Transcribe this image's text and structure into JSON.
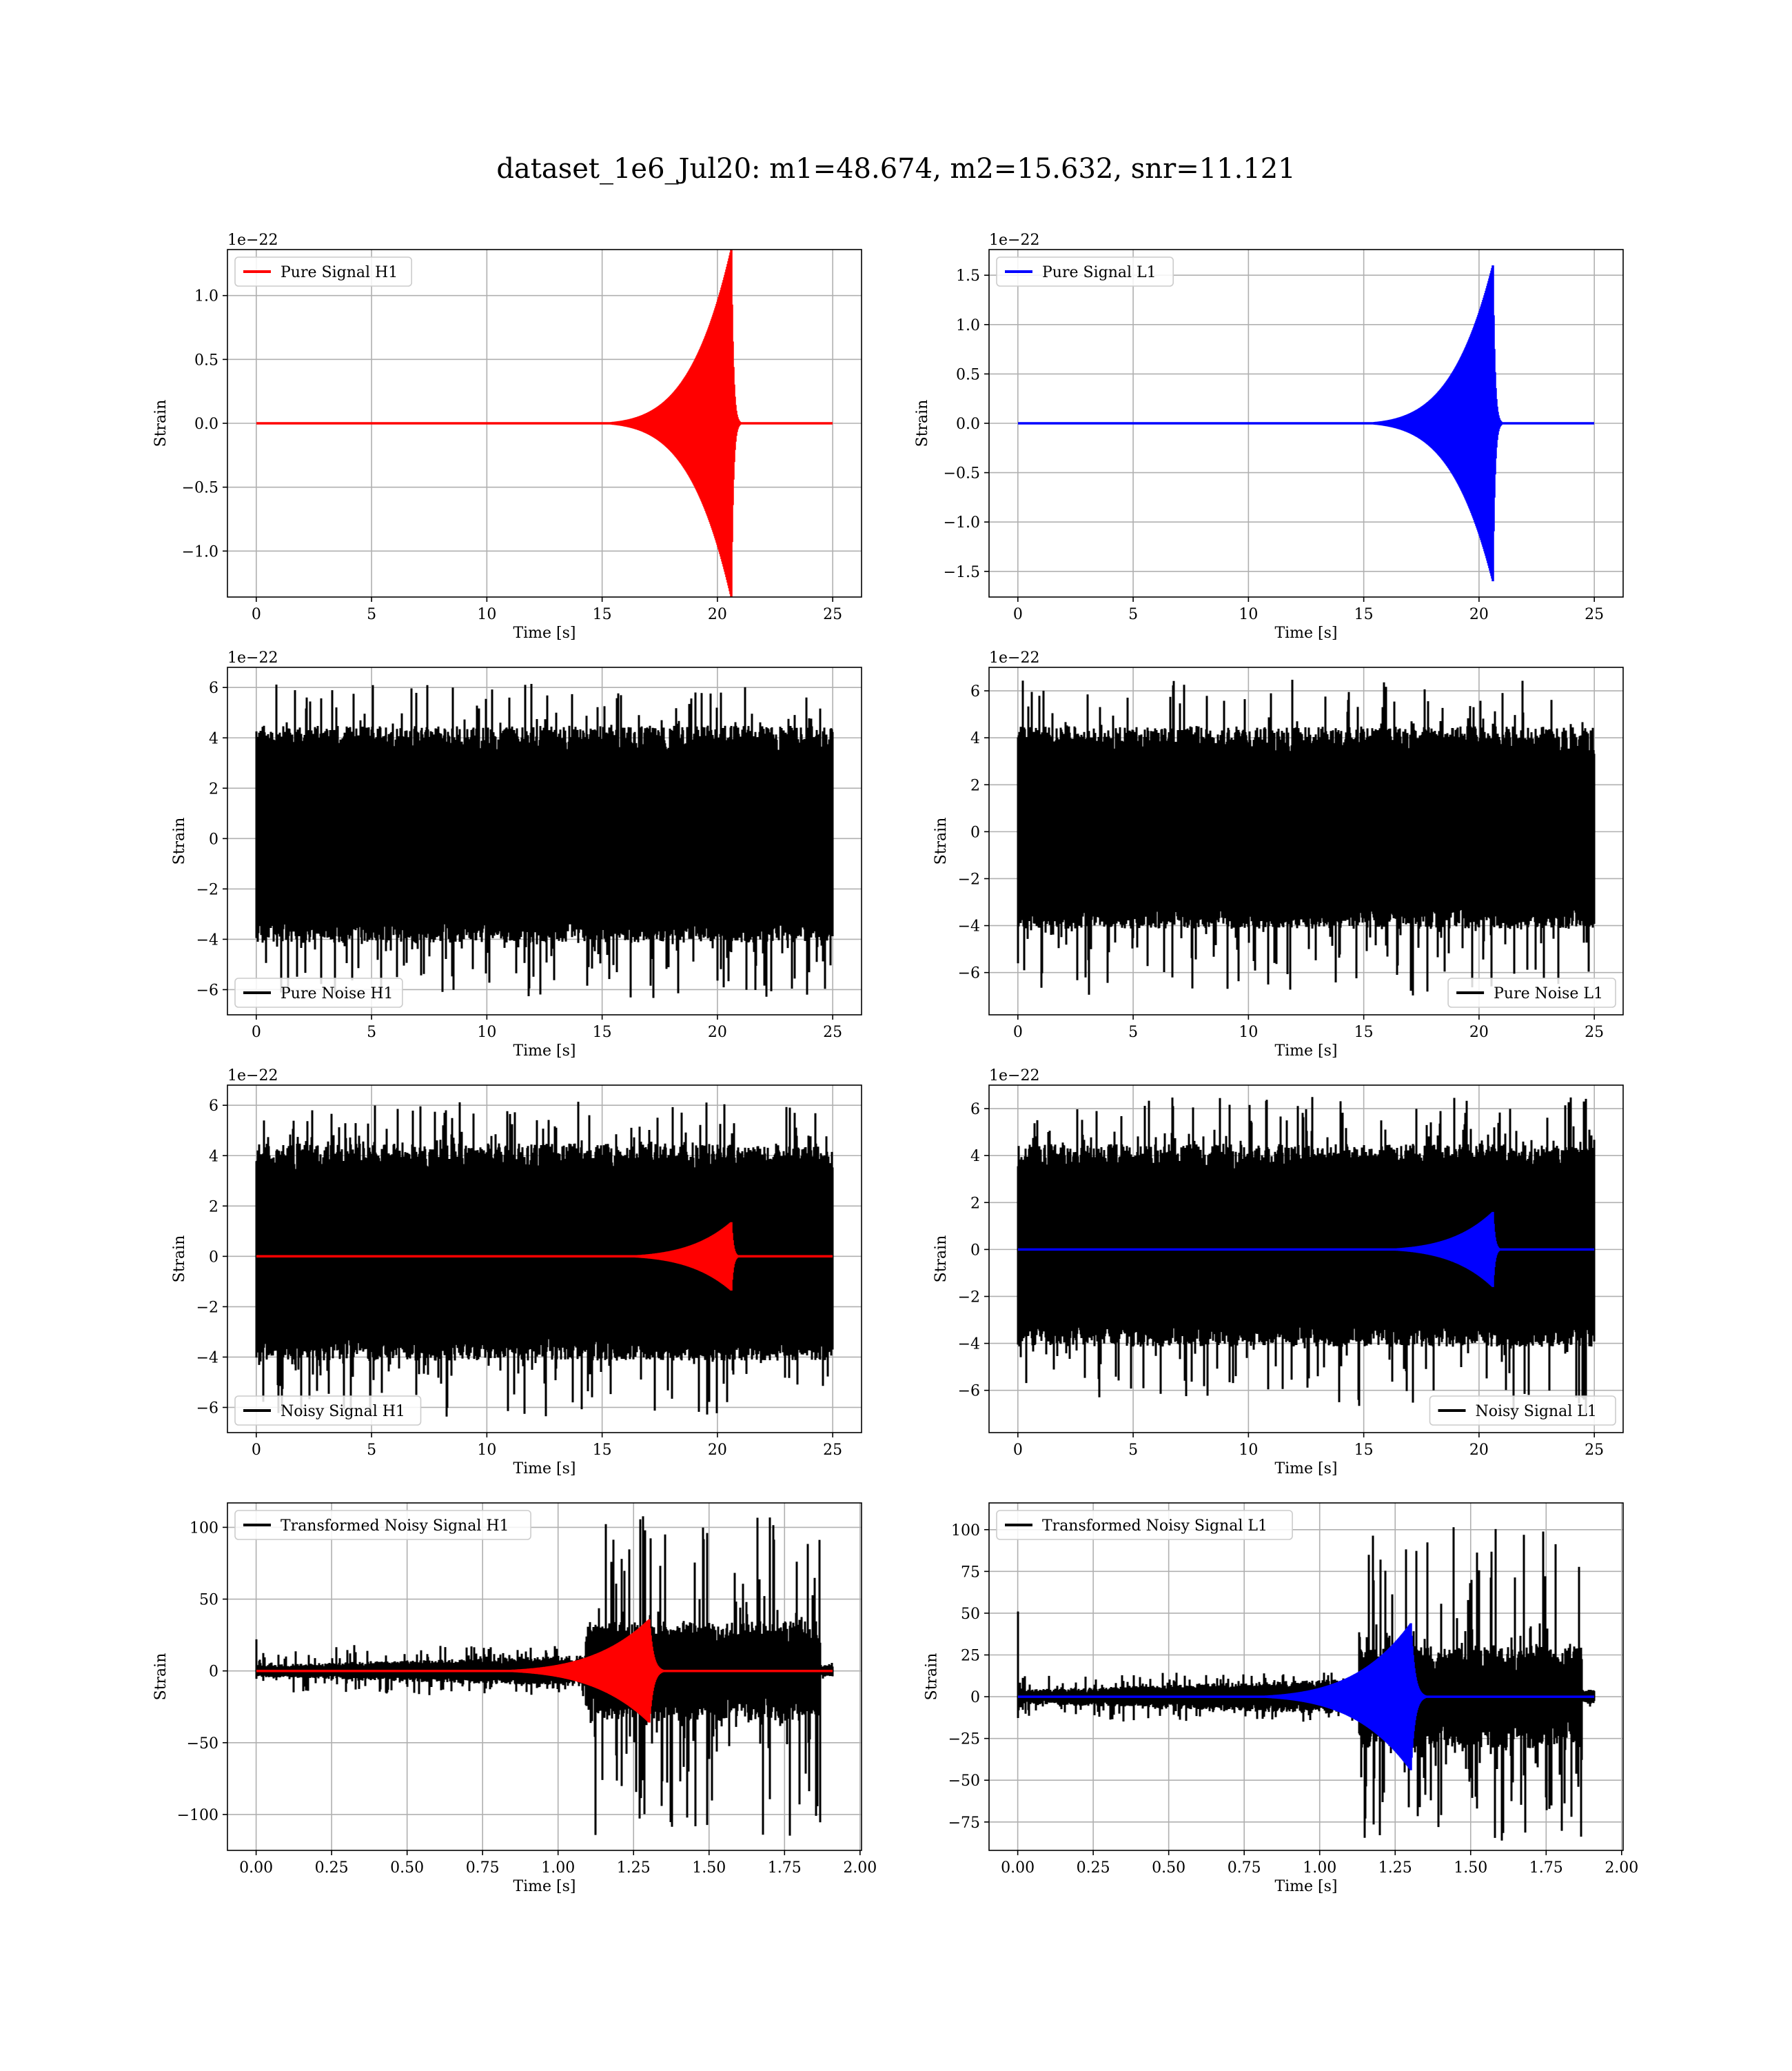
{
  "figure": {
    "title": "dataset_1e6_Jul20: m1=48.674, m2=15.632, snr=11.121"
  },
  "colors": {
    "signal_h1": "#ff0000",
    "signal_l1": "#0000ff",
    "noise": "#000000",
    "grid": "#b0b0b0"
  },
  "chart_data": [
    {
      "id": "pure-signal-h1",
      "type": "line",
      "xlabel": "Time [s]",
      "ylabel": "Strain",
      "offset_text": "1e−22",
      "xlim": [
        -1.25,
        26.25
      ],
      "ylim": [
        -1.36,
        1.36
      ],
      "xticks": [
        0,
        5,
        10,
        15,
        20,
        25
      ],
      "xtick_labels": [
        "0",
        "5",
        "10",
        "15",
        "20",
        "25"
      ],
      "yticks": [
        -1.0,
        -0.5,
        0.0,
        0.5,
        1.0
      ],
      "ytick_labels": [
        "−1.0",
        "−0.5",
        "0.0",
        "0.5",
        "1.0"
      ],
      "legend": {
        "position": "upper left"
      },
      "grid": true,
      "series": [
        {
          "name": "Pure Signal H1",
          "color": "#ff0000",
          "kind": "chirp",
          "t_start": 0,
          "t_end": 25,
          "t_merger": 20.6,
          "peak": 1.36,
          "ringdown_s": 0.08
        }
      ]
    },
    {
      "id": "pure-signal-l1",
      "type": "line",
      "xlabel": "Time [s]",
      "ylabel": "Strain",
      "offset_text": "1e−22",
      "xlim": [
        -1.25,
        26.25
      ],
      "ylim": [
        -1.76,
        1.76
      ],
      "xticks": [
        0,
        5,
        10,
        15,
        20,
        25
      ],
      "xtick_labels": [
        "0",
        "5",
        "10",
        "15",
        "20",
        "25"
      ],
      "yticks": [
        -1.5,
        -1.0,
        -0.5,
        0.0,
        0.5,
        1.0,
        1.5
      ],
      "ytick_labels": [
        "−1.5",
        "−1.0",
        "−0.5",
        "0.0",
        "0.5",
        "1.0",
        "1.5"
      ],
      "legend": {
        "position": "upper left"
      },
      "grid": true,
      "series": [
        {
          "name": "Pure Signal L1",
          "color": "#0000ff",
          "kind": "chirp",
          "t_start": 0,
          "t_end": 25,
          "t_merger": 20.6,
          "peak": 1.6,
          "ringdown_s": 0.08
        }
      ]
    },
    {
      "id": "pure-noise-h1",
      "type": "line",
      "xlabel": "Time [s]",
      "ylabel": "Strain",
      "offset_text": "1e−22",
      "xlim": [
        -1.25,
        26.25
      ],
      "ylim": [
        -7.0,
        6.8
      ],
      "xticks": [
        0,
        5,
        10,
        15,
        20,
        25
      ],
      "xtick_labels": [
        "0",
        "5",
        "10",
        "15",
        "20",
        "25"
      ],
      "yticks": [
        -6,
        -4,
        -2,
        0,
        2,
        4,
        6
      ],
      "ytick_labels": [
        "−6",
        "−4",
        "−2",
        "0",
        "2",
        "4",
        "6"
      ],
      "legend": {
        "position": "lower left"
      },
      "grid": true,
      "series": [
        {
          "name": "Pure Noise H1",
          "color": "#000000",
          "kind": "noise",
          "t_start": 0,
          "t_end": 25,
          "band_low": -3.6,
          "band_high": 3.9,
          "peak_low": -6.4,
          "peak_high": 6.15
        }
      ]
    },
    {
      "id": "pure-noise-l1",
      "type": "line",
      "xlabel": "Time [s]",
      "ylabel": "Strain",
      "offset_text": "1e−22",
      "xlim": [
        -1.25,
        26.25
      ],
      "ylim": [
        -7.8,
        7.0
      ],
      "xticks": [
        0,
        5,
        10,
        15,
        20,
        25
      ],
      "xtick_labels": [
        "0",
        "5",
        "10",
        "15",
        "20",
        "25"
      ],
      "yticks": [
        -6,
        -4,
        -2,
        0,
        2,
        4,
        6
      ],
      "ytick_labels": [
        "−6",
        "−4",
        "−2",
        "0",
        "2",
        "4",
        "6"
      ],
      "legend": {
        "position": "lower right"
      },
      "grid": true,
      "series": [
        {
          "name": "Pure Noise L1",
          "color": "#000000",
          "kind": "noise",
          "t_start": 0,
          "t_end": 25,
          "band_low": -3.6,
          "band_high": 3.9,
          "peak_low": -7.0,
          "peak_high": 6.5
        }
      ]
    },
    {
      "id": "noisy-signal-h1",
      "type": "line",
      "xlabel": "Time [s]",
      "ylabel": "Strain",
      "offset_text": "1e−22",
      "xlim": [
        -1.25,
        26.25
      ],
      "ylim": [
        -7.0,
        6.8
      ],
      "xticks": [
        0,
        5,
        10,
        15,
        20,
        25
      ],
      "xtick_labels": [
        "0",
        "5",
        "10",
        "15",
        "20",
        "25"
      ],
      "yticks": [
        -6,
        -4,
        -2,
        0,
        2,
        4,
        6
      ],
      "ytick_labels": [
        "−6",
        "−4",
        "−2",
        "0",
        "2",
        "4",
        "6"
      ],
      "legend": {
        "position": "lower left"
      },
      "grid": true,
      "series": [
        {
          "name": "Noisy Signal H1",
          "color": "#000000",
          "kind": "noise",
          "t_start": 0,
          "t_end": 25,
          "band_low": -3.6,
          "band_high": 3.9,
          "peak_low": -6.4,
          "peak_high": 6.15
        },
        {
          "color": "#ff0000",
          "kind": "chirp",
          "t_start": 0,
          "t_end": 25,
          "t_merger": 20.6,
          "peak": 1.36,
          "ringdown_s": 0.08
        }
      ]
    },
    {
      "id": "noisy-signal-l1",
      "type": "line",
      "xlabel": "Time [s]",
      "ylabel": "Strain",
      "offset_text": "1e−22",
      "xlim": [
        -1.25,
        26.25
      ],
      "ylim": [
        -7.8,
        7.0
      ],
      "xticks": [
        0,
        5,
        10,
        15,
        20,
        25
      ],
      "xtick_labels": [
        "0",
        "5",
        "10",
        "15",
        "20",
        "25"
      ],
      "yticks": [
        -6,
        -4,
        -2,
        0,
        2,
        4,
        6
      ],
      "ytick_labels": [
        "−6",
        "−4",
        "−2",
        "0",
        "2",
        "4",
        "6"
      ],
      "legend": {
        "position": "lower right"
      },
      "grid": true,
      "series": [
        {
          "name": "Noisy Signal L1",
          "color": "#000000",
          "kind": "noise",
          "t_start": 0,
          "t_end": 25,
          "band_low": -3.6,
          "band_high": 3.9,
          "peak_low": -7.0,
          "peak_high": 6.5
        },
        {
          "color": "#0000ff",
          "kind": "chirp",
          "t_start": 0,
          "t_end": 25,
          "t_merger": 20.6,
          "peak": 1.6,
          "ringdown_s": 0.08
        }
      ]
    },
    {
      "id": "transformed-noisy-signal-h1",
      "type": "line",
      "xlabel": "Time [s]",
      "ylabel": "Strain",
      "offset_text": "",
      "xlim": [
        -0.095,
        2.005
      ],
      "ylim": [
        -125,
        117
      ],
      "xticks": [
        0,
        0.25,
        0.5,
        0.75,
        1.0,
        1.25,
        1.5,
        1.75,
        2.0
      ],
      "xtick_labels": [
        "0.00",
        "0.25",
        "0.50",
        "0.75",
        "1.00",
        "1.25",
        "1.50",
        "1.75",
        "2.00"
      ],
      "yticks": [
        -100,
        -50,
        0,
        50,
        100
      ],
      "ytick_labels": [
        "−100",
        "−50",
        "0",
        "50",
        "100"
      ],
      "legend": {
        "position": "upper left"
      },
      "grid": true,
      "series": [
        {
          "name": "Transformed Noisy Signal H1",
          "color": "#000000",
          "kind": "whitened",
          "t_start": 0,
          "t_end": 1.91,
          "t_loud": 1.09,
          "t_quiet": 1.87,
          "band_early": 3,
          "band_late": 25,
          "peak_early": 18,
          "peak_late": 108,
          "peak_low_late": -115,
          "spike_t0": 22
        },
        {
          "color": "#ff0000",
          "kind": "chirp",
          "t_start": 0,
          "t_end": 1.91,
          "t_merger": 1.302,
          "peak": 36,
          "ringdown_s": 0.012,
          "t_onset": 0.5
        }
      ]
    },
    {
      "id": "transformed-noisy-signal-l1",
      "type": "line",
      "xlabel": "Time [s]",
      "ylabel": "Strain",
      "offset_text": "",
      "xlim": [
        -0.095,
        2.005
      ],
      "ylim": [
        -92,
        116
      ],
      "xticks": [
        0,
        0.25,
        0.5,
        0.75,
        1.0,
        1.25,
        1.5,
        1.75,
        2.0
      ],
      "xtick_labels": [
        "0.00",
        "0.25",
        "0.50",
        "0.75",
        "1.00",
        "1.25",
        "1.50",
        "1.75",
        "2.00"
      ],
      "yticks": [
        -75,
        -50,
        -25,
        0,
        25,
        50,
        75,
        100
      ],
      "ytick_labels": [
        "−75",
        "−50",
        "−25",
        "0",
        "25",
        "50",
        "75",
        "100"
      ],
      "legend": {
        "position": "upper left"
      },
      "grid": true,
      "series": [
        {
          "name": "Transformed Noisy Signal L1",
          "color": "#000000",
          "kind": "whitened",
          "t_start": 0,
          "t_end": 1.91,
          "t_loud": 1.13,
          "t_quiet": 1.87,
          "band_early": 3,
          "band_late": 22,
          "peak_early": 15,
          "peak_late": 105,
          "peak_low_late": -88,
          "spike_t0": 51
        },
        {
          "color": "#0000ff",
          "kind": "chirp",
          "t_start": 0,
          "t_end": 1.91,
          "t_merger": 1.302,
          "peak": 44,
          "ringdown_s": 0.012,
          "t_onset": 0.5
        }
      ]
    }
  ]
}
